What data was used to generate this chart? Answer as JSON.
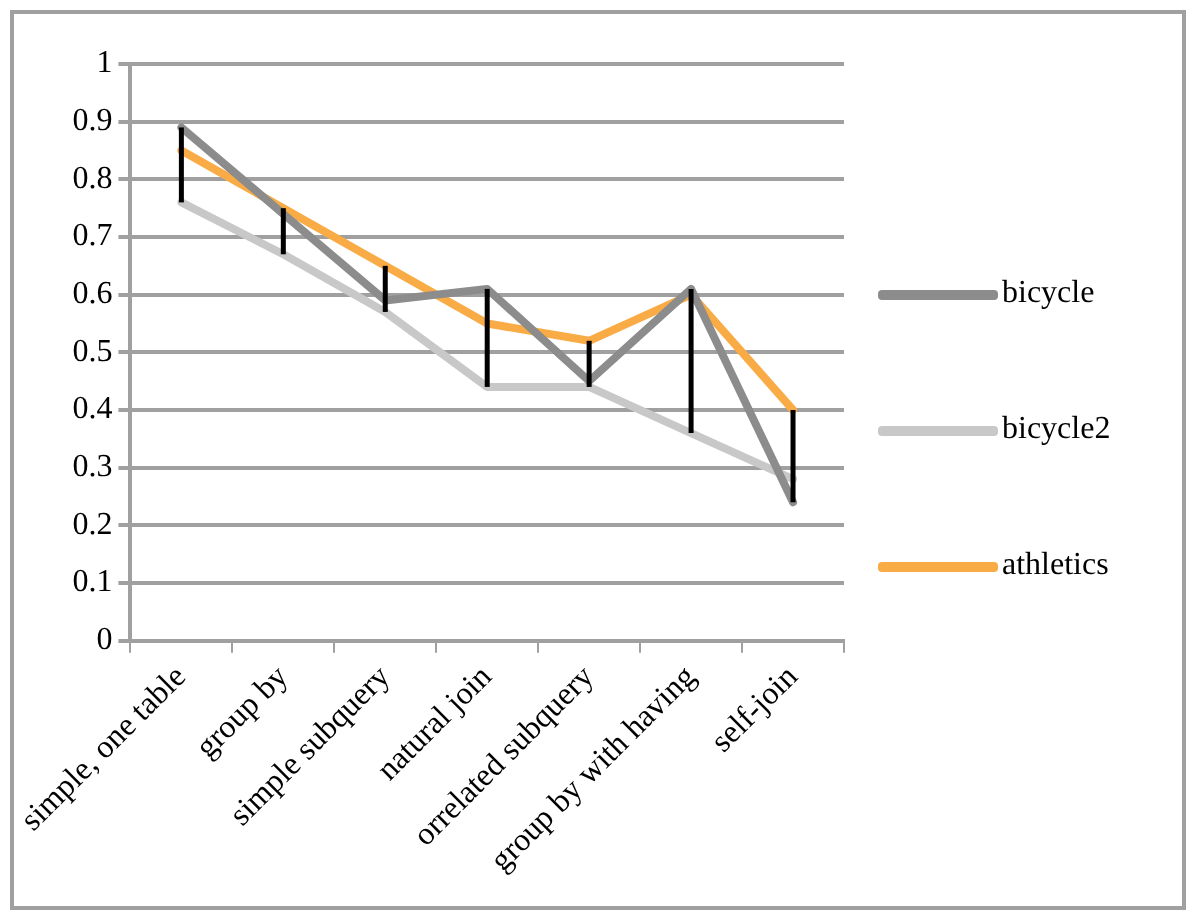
{
  "chart_data": {
    "type": "line",
    "categories": [
      "simple, one table",
      "group by",
      "simple subquery",
      "natural join",
      "orrelated subquery",
      "group by with having",
      "self-join"
    ],
    "series": [
      {
        "name": "bicycle",
        "color": "#8c8c8c",
        "values": [
          0.89,
          0.74,
          0.59,
          0.61,
          0.45,
          0.61,
          0.24
        ]
      },
      {
        "name": "bicycle2",
        "color": "#c8c8c8",
        "values": [
          0.76,
          0.67,
          0.57,
          0.44,
          0.44,
          0.36,
          0.28
        ]
      },
      {
        "name": "athletics",
        "color": "#f9ab45",
        "values": [
          0.85,
          0.75,
          0.65,
          0.55,
          0.52,
          0.6,
          0.4
        ],
        "errors": [
          [
            0.76,
            0.89
          ],
          [
            0.67,
            0.75
          ],
          [
            0.57,
            0.65
          ],
          [
            0.44,
            0.61
          ],
          [
            0.44,
            0.52
          ],
          [
            0.36,
            0.61
          ],
          [
            0.24,
            0.4
          ]
        ]
      }
    ],
    "ylim": [
      0,
      1
    ],
    "yticks": [
      0,
      0.1,
      0.2,
      0.3,
      0.4,
      0.5,
      0.6,
      0.7,
      0.8,
      0.9,
      1
    ],
    "grid": "y",
    "legend": "right",
    "marker": "none",
    "line_style": "solid"
  }
}
